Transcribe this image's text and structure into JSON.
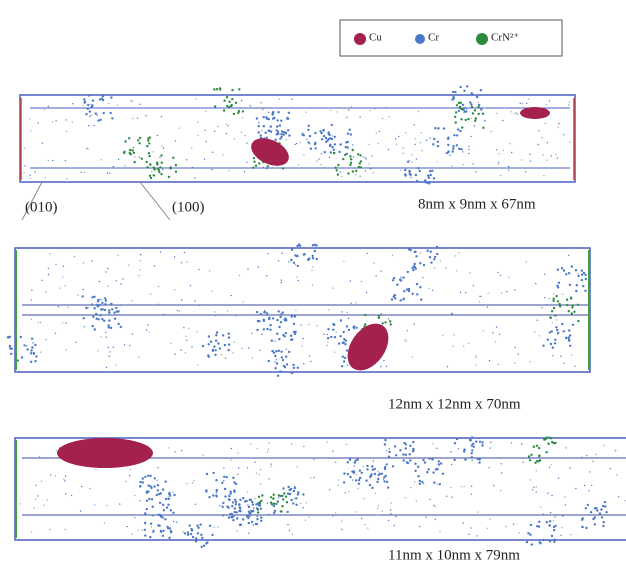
{
  "legend": {
    "items": [
      {
        "label": "Cu",
        "color": "#a3204f"
      },
      {
        "label": "Cr",
        "color": "#4a78c8"
      },
      {
        "label": "CrN²⁺",
        "color": "#2e8a3e"
      }
    ]
  },
  "panels": [
    {
      "dimensions": "8nm x 9nm x 67nm",
      "axis_labels": [
        "(010)",
        "(100)"
      ]
    },
    {
      "dimensions": "12nm x 12nm x 70nm"
    },
    {
      "dimensions": "11nm x 10nm x 79nm"
    }
  ]
}
